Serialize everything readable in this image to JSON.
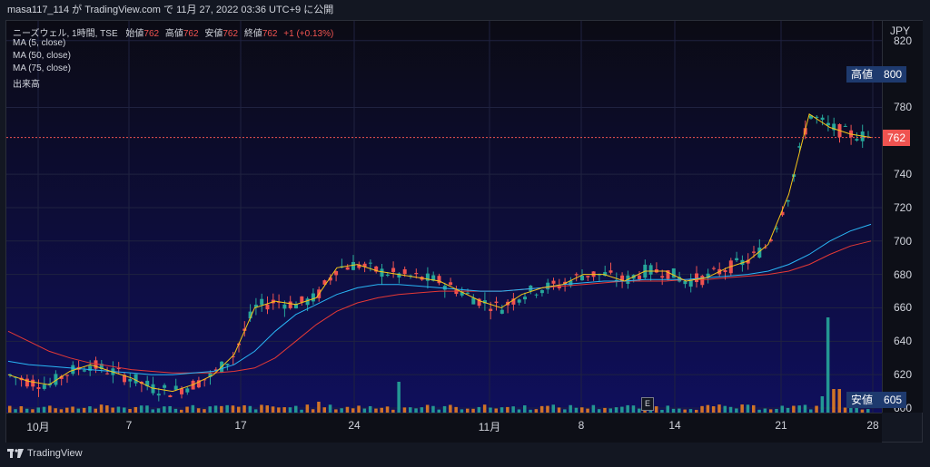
{
  "header": {
    "publish_line": "masa117_114 が TradingView.com で 11月 27, 2022 03:36 UTC+9 に公開"
  },
  "legend": {
    "symbol_line": "ニーズウェル, 1時間, TSE",
    "open_label": "始値",
    "open_value": "762",
    "high_label": "高値",
    "high_value": "762",
    "low_label": "安値",
    "low_value": "762",
    "close_label": "終値",
    "close_value": "762",
    "change": "+1 (+0.13%)",
    "ma5": "MA (5, close)",
    "ma50": "MA (50, close)",
    "ma75": "MA (75, close)",
    "volume": "出来高"
  },
  "price_axis": {
    "unit": "JPY",
    "ticks": [
      "820",
      "780",
      "740",
      "720",
      "700",
      "680",
      "660",
      "640",
      "620",
      "600"
    ],
    "tags": [
      {
        "label": "高値",
        "value": "800",
        "color": "#1e3a6e"
      },
      {
        "label": "",
        "value": "762",
        "color": "#ef5350"
      },
      {
        "label": "安値",
        "value": "605",
        "color": "#1e3a6e"
      }
    ]
  },
  "time_axis": {
    "ticks": [
      "10月",
      "7",
      "17",
      "24",
      "11月",
      "8",
      "14",
      "21",
      "28"
    ]
  },
  "event_marker": "E",
  "footer": {
    "brand": "TradingView"
  },
  "colors": {
    "up": "#26a69a",
    "down": "#ef5350",
    "ma5": "#f5c518",
    "ma50": "#29b6f6",
    "ma75": "#e53935",
    "volume": "#e67e22"
  },
  "chart_data": {
    "type": "candlestick",
    "ylim": [
      600,
      825
    ],
    "x_ticks": [
      "10月",
      "7",
      "17",
      "24",
      "11月",
      "8",
      "14",
      "21",
      "28"
    ],
    "y_ticks": [
      820,
      780,
      740,
      720,
      700,
      680,
      660,
      640,
      620,
      600
    ],
    "series": [
      {
        "name": "MA (5, close)",
        "values": [
          620,
          616,
          614,
          622,
          626,
          622,
          618,
          612,
          610,
          614,
          620,
          632,
          660,
          664,
          662,
          666,
          684,
          686,
          682,
          680,
          678,
          676,
          670,
          664,
          660,
          668,
          672,
          674,
          680,
          680,
          676,
          682,
          682,
          676,
          678,
          684,
          688,
          698,
          728,
          776,
          768,
          764,
          762
        ]
      },
      {
        "name": "MA (50, close)",
        "values": [
          628,
          626,
          625,
          624,
          623,
          622,
          621,
          620,
          620,
          621,
          622,
          626,
          634,
          646,
          656,
          662,
          668,
          672,
          674,
          674,
          673,
          672,
          671,
          670,
          670,
          671,
          672,
          674,
          675,
          676,
          676,
          677,
          677,
          677,
          678,
          679,
          680,
          682,
          686,
          692,
          700,
          706,
          710
        ]
      },
      {
        "name": "MA (75, close)",
        "values": [
          646,
          640,
          634,
          630,
          627,
          625,
          623,
          622,
          621,
          621,
          621,
          622,
          624,
          630,
          640,
          650,
          658,
          663,
          666,
          668,
          669,
          670,
          670,
          670,
          670,
          671,
          672,
          673,
          674,
          675,
          676,
          676,
          676,
          677,
          677,
          678,
          679,
          680,
          682,
          686,
          692,
          697,
          700
        ]
      }
    ],
    "volume_peaks": {
      "max_value_relative": 1.0,
      "notable": [
        {
          "at": "24-26",
          "rel": 0.33
        },
        {
          "at": "24 11月 late",
          "rel": 1.0
        }
      ]
    }
  }
}
